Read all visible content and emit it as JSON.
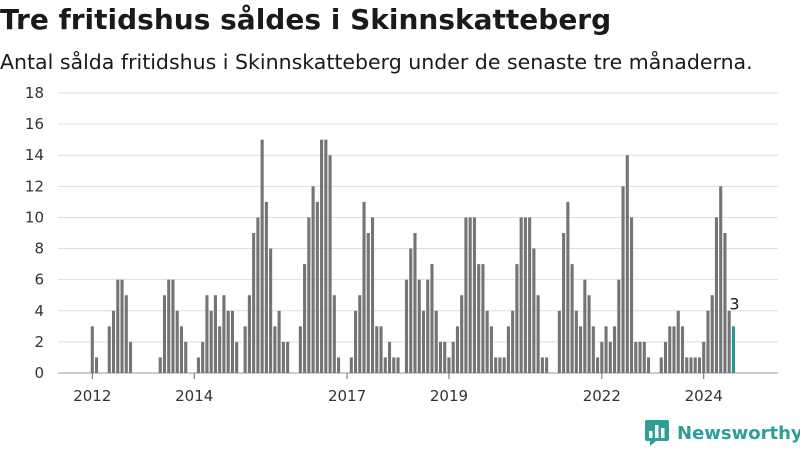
{
  "header": {
    "title": "Tre fritidshus såldes i Skinnskatteberg",
    "subtitle": "Antal sålda fritidshus i Skinnskatteberg under de senaste tre månaderna."
  },
  "brand": {
    "name": "Newsworthy",
    "logo_icon": "bar-chart-logo-icon",
    "color": "#2e9e96"
  },
  "colors": {
    "bar": "#747476",
    "highlight": "#2a9791",
    "grid": "#dddddd"
  },
  "chart_data": {
    "type": "bar",
    "title": "Tre fritidshus såldes i Skinnskatteberg",
    "subtitle": "Antal sålda fritidshus i Skinnskatteberg under de senaste tre månaderna.",
    "xlabel": "",
    "ylabel": "",
    "ylim": [
      0,
      18
    ],
    "yticks": [
      0,
      2,
      4,
      6,
      8,
      10,
      12,
      14,
      16,
      18
    ],
    "x_tick_labels": [
      "2012",
      "2014",
      "2017",
      "2019",
      "2022",
      "2024"
    ],
    "grid": true,
    "legend": "none",
    "x_start": "2012-01",
    "frequency": "monthly",
    "values": [
      3,
      1,
      0,
      0,
      3,
      4,
      6,
      6,
      5,
      2,
      0,
      0,
      0,
      0,
      0,
      0,
      1,
      5,
      6,
      6,
      4,
      3,
      2,
      0,
      0,
      1,
      2,
      5,
      4,
      5,
      3,
      5,
      4,
      4,
      2,
      0,
      3,
      5,
      9,
      10,
      15,
      11,
      8,
      3,
      4,
      2,
      2,
      0,
      0,
      3,
      7,
      10,
      12,
      11,
      15,
      15,
      14,
      5,
      1,
      0,
      0,
      1,
      4,
      5,
      11,
      9,
      10,
      3,
      3,
      1,
      2,
      1,
      1,
      0,
      6,
      8,
      9,
      6,
      4,
      6,
      7,
      4,
      2,
      2,
      1,
      2,
      3,
      5,
      10,
      10,
      10,
      7,
      7,
      4,
      3,
      1,
      1,
      1,
      3,
      4,
      7,
      10,
      10,
      10,
      8,
      5,
      1,
      1,
      0,
      0,
      4,
      9,
      11,
      7,
      4,
      3,
      6,
      5,
      3,
      1,
      2,
      3,
      2,
      3,
      6,
      12,
      14,
      10,
      2,
      2,
      2,
      1,
      0,
      0,
      1,
      2,
      3,
      3,
      4,
      3,
      1,
      1,
      1,
      1,
      2,
      4,
      5,
      10,
      12,
      9,
      4,
      3
    ],
    "highlight_last": 1,
    "annotation": {
      "text": "3",
      "point": "last"
    }
  }
}
